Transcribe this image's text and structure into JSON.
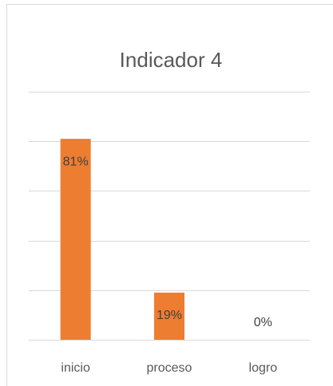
{
  "chart_data": {
    "type": "bar",
    "title": "Indicador 4",
    "categories": [
      "inicio",
      "proceso",
      "logro"
    ],
    "values": [
      81,
      19,
      0
    ],
    "value_labels": [
      "81%",
      "19%",
      "0%"
    ],
    "color": "#ed7d31",
    "ylim": [
      0,
      100
    ],
    "yticks": [
      0,
      20,
      40,
      60,
      80,
      100
    ],
    "grid": true
  }
}
